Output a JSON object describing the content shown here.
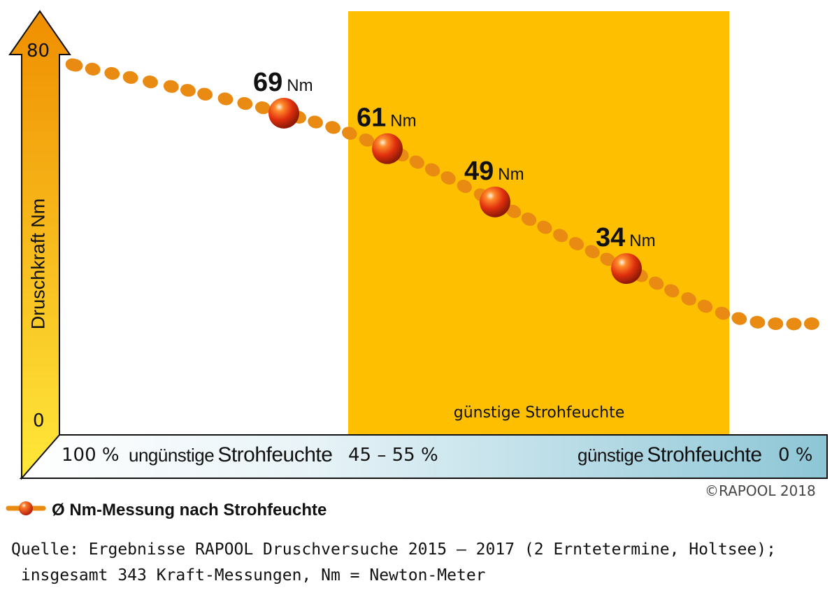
{
  "chart_data": {
    "type": "line",
    "ylabel": "Druschkraft Nm",
    "ylim": [
      0,
      80
    ],
    "yticks": [
      "80",
      "0"
    ],
    "x_axis": {
      "left_pct": "100 %",
      "left_label_small": "ungünstige",
      "left_label_big": "Strohfeuchte",
      "mid_pct": "45 – 55 %",
      "right_label_small": "günstige",
      "right_label_big": "Strohfeuchte",
      "right_pct": "0 %"
    },
    "highlight_band_label": "günstige Strohfeuchte",
    "series": [
      {
        "name": "Ø Nm-Messung nach Strohfeuchte",
        "points": [
          {
            "value": 69,
            "value_label": "69",
            "unit": "Nm"
          },
          {
            "value": 61,
            "value_label": "61",
            "unit": "Nm"
          },
          {
            "value": 49,
            "value_label": "49",
            "unit": "Nm"
          },
          {
            "value": 34,
            "value_label": "34",
            "unit": "Nm"
          }
        ]
      }
    ],
    "legend": "Ø Nm-Messung nach Strohfeuchte",
    "legend_position": "bottom-left",
    "colors": {
      "band": "#fdbf00",
      "dots": "#e98a12",
      "markers": "#d42a12",
      "axis_arrow_top": "#ef8e00",
      "axis_arrow_bottom": "#ffe83a",
      "axis_floor_left": "#ffffff",
      "axis_floor_right": "#8dc6d6"
    }
  },
  "copyright": "©RAPOOL 2018",
  "source_line1": "Quelle: Ergebnisse RAPOOL Druschversuche 2015 – 2017 (2 Erntetermine, Holtsee);",
  "source_line2": " insgesamt 343 Kraft-Messungen, Nm = Newton-Meter"
}
